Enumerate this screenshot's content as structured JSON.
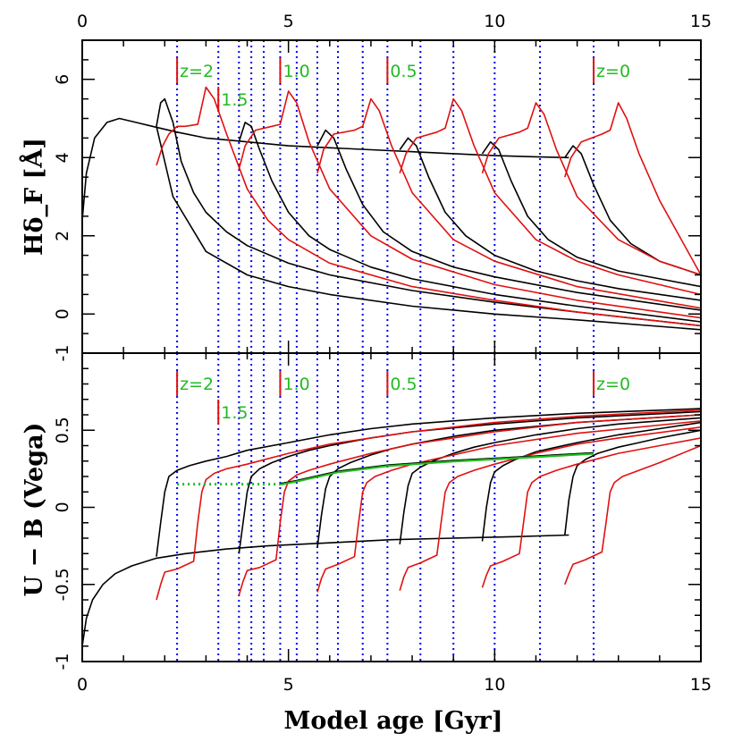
{
  "colors": {
    "model_black": "#000000",
    "model_red": "#e01010",
    "vline_blue": "#0000ee",
    "z_label_green": "#22bb22",
    "z_tick_red": "#e01010",
    "green_track": "#22bb22"
  },
  "chart_data": [
    {
      "type": "line",
      "panel": "top",
      "ylabel": "Hδ_F [Å]",
      "xlabel": "",
      "xlim": [
        0,
        15
      ],
      "ylim": [
        -1,
        7
      ],
      "grid": false,
      "x_ticks_top": [
        0,
        5,
        10,
        15
      ],
      "y_ticks": [
        -1,
        0,
        2,
        4,
        6
      ],
      "vertical_lines_x": [
        2.3,
        3.3,
        3.8,
        4.1,
        4.4,
        4.8,
        5.2,
        5.7,
        6.2,
        6.8,
        7.4,
        8.2,
        9.0,
        10.0,
        11.1,
        12.4
      ],
      "z_markers": [
        {
          "label": "z=2",
          "x": 2.3
        },
        {
          "label": "1.5",
          "x": 3.3
        },
        {
          "label": "1.0",
          "x": 4.8
        },
        {
          "label": "0.5",
          "x": 7.4
        },
        {
          "label": "z=0",
          "x": 12.4
        }
      ],
      "series": [
        {
          "color": "black",
          "x": [
            0,
            0.1,
            0.3,
            0.6,
            0.9,
            1.3,
            1.7,
            2.3,
            3.0,
            4.0,
            5.0,
            6.0,
            7.0,
            8.0,
            9.0,
            10.0,
            11.0,
            11.8
          ],
          "values": [
            2.4,
            3.6,
            4.5,
            4.9,
            5.0,
            4.9,
            4.8,
            4.65,
            4.5,
            4.4,
            4.3,
            4.25,
            4.2,
            4.15,
            4.1,
            4.05,
            4.02,
            4.0
          ]
        },
        {
          "color": "black",
          "x": [
            1.8,
            1.9,
            2.0,
            2.2,
            2.4,
            2.7,
            3.0,
            3.5,
            4.0,
            5.0,
            6.0,
            8.0,
            10.0,
            12.0,
            15.0
          ],
          "values": [
            4.8,
            5.4,
            5.5,
            4.9,
            3.9,
            3.1,
            2.6,
            2.1,
            1.75,
            1.3,
            1.0,
            0.6,
            0.3,
            0.05,
            -0.3
          ]
        },
        {
          "color": "black",
          "x": [
            1.8,
            2.2,
            3.0,
            4.0,
            5.0,
            6.0,
            8.0,
            10.0,
            12.0,
            15.0
          ],
          "values": [
            4.8,
            3.0,
            1.6,
            1.0,
            0.7,
            0.5,
            0.2,
            0.0,
            -0.15,
            -0.4
          ]
        },
        {
          "color": "black",
          "x": [
            3.8,
            3.95,
            4.1,
            4.3,
            4.6,
            5.0,
            5.5,
            6.0,
            7.0,
            8.0,
            10.0,
            12.0,
            15.0
          ],
          "values": [
            4.4,
            4.9,
            4.8,
            4.2,
            3.4,
            2.6,
            2.0,
            1.65,
            1.2,
            0.9,
            0.5,
            0.2,
            -0.2
          ]
        },
        {
          "color": "black",
          "x": [
            5.7,
            5.9,
            6.1,
            6.4,
            6.8,
            7.3,
            8.0,
            9.0,
            10.0,
            12.0,
            15.0
          ],
          "values": [
            4.3,
            4.7,
            4.5,
            3.7,
            2.8,
            2.1,
            1.6,
            1.2,
            0.95,
            0.55,
            0.1
          ]
        },
        {
          "color": "black",
          "x": [
            7.7,
            7.9,
            8.1,
            8.4,
            8.8,
            9.3,
            10.0,
            11.0,
            12.0,
            13.0,
            15.0
          ],
          "values": [
            4.2,
            4.5,
            4.3,
            3.5,
            2.6,
            2.0,
            1.5,
            1.1,
            0.85,
            0.65,
            0.35
          ]
        },
        {
          "color": "black",
          "x": [
            9.7,
            9.9,
            10.1,
            10.4,
            10.8,
            11.3,
            12.0,
            13.0,
            14.0,
            15.0
          ],
          "values": [
            4.1,
            4.4,
            4.2,
            3.4,
            2.5,
            1.9,
            1.45,
            1.1,
            0.9,
            0.7
          ]
        },
        {
          "color": "black",
          "x": [
            11.7,
            11.9,
            12.1,
            12.4,
            12.8,
            13.3,
            14.0,
            15.0
          ],
          "values": [
            4.0,
            4.3,
            4.1,
            3.3,
            2.4,
            1.8,
            1.35,
            1.0
          ]
        },
        {
          "color": "red",
          "x": [
            1.8,
            1.95,
            2.1,
            2.3,
            2.5,
            2.8,
            3.0,
            3.2,
            3.5,
            4.0,
            4.5,
            5.0,
            6.0,
            8.0,
            10.0,
            12.0,
            15.0
          ],
          "values": [
            3.8,
            4.3,
            4.6,
            4.8,
            4.8,
            4.85,
            5.8,
            5.5,
            4.6,
            3.2,
            2.4,
            1.9,
            1.3,
            0.7,
            0.35,
            0.05,
            -0.3
          ]
        },
        {
          "color": "red",
          "x": [
            3.8,
            3.95,
            4.2,
            4.6,
            4.8,
            5.0,
            5.2,
            5.5,
            6.0,
            7.0,
            8.0,
            10.0,
            12.0,
            15.0
          ],
          "values": [
            3.7,
            4.3,
            4.7,
            4.8,
            4.85,
            5.7,
            5.4,
            4.4,
            3.2,
            2.0,
            1.4,
            0.75,
            0.35,
            -0.1
          ]
        },
        {
          "color": "red",
          "x": [
            5.7,
            5.85,
            6.1,
            6.6,
            6.8,
            7.0,
            7.2,
            7.5,
            8.0,
            9.0,
            10.0,
            12.0,
            15.0
          ],
          "values": [
            3.6,
            4.2,
            4.6,
            4.7,
            4.8,
            5.5,
            5.2,
            4.3,
            3.1,
            1.9,
            1.35,
            0.7,
            0.15
          ]
        },
        {
          "color": "red",
          "x": [
            7.7,
            7.85,
            8.1,
            8.6,
            8.8,
            9.0,
            9.2,
            9.5,
            10.0,
            11.0,
            12.0,
            13.0,
            15.0
          ],
          "values": [
            3.6,
            4.1,
            4.5,
            4.65,
            4.75,
            5.5,
            5.2,
            4.3,
            3.1,
            1.9,
            1.35,
            1.0,
            0.5
          ]
        },
        {
          "color": "red",
          "x": [
            9.7,
            9.85,
            10.1,
            10.6,
            10.8,
            11.0,
            11.2,
            11.5,
            12.0,
            13.0,
            14.0,
            15.0
          ],
          "values": [
            3.6,
            4.1,
            4.5,
            4.65,
            4.75,
            5.4,
            5.1,
            4.2,
            3.0,
            1.9,
            1.35,
            1.0
          ]
        },
        {
          "color": "red",
          "x": [
            11.7,
            11.85,
            12.1,
            12.6,
            12.8,
            13.0,
            13.2,
            13.5,
            14.0,
            15.0
          ],
          "values": [
            3.5,
            4.0,
            4.4,
            4.6,
            4.7,
            5.4,
            5.0,
            4.1,
            2.9,
            1.0
          ]
        }
      ]
    },
    {
      "type": "line",
      "panel": "bottom",
      "ylabel": "U − B (Vega)",
      "xlabel": "Model age [Gyr]",
      "xlim": [
        0,
        15
      ],
      "ylim": [
        -1,
        1
      ],
      "grid": false,
      "x_ticks": [
        0,
        5,
        10,
        15
      ],
      "y_ticks": [
        -1,
        -0.5,
        0,
        0.5
      ],
      "vertical_lines_x": [
        2.3,
        3.3,
        3.8,
        4.1,
        4.4,
        4.8,
        5.2,
        5.7,
        6.2,
        6.8,
        7.4,
        8.2,
        9.0,
        10.0,
        11.1,
        12.4
      ],
      "z_markers": [
        {
          "label": "z=2",
          "x": 2.3
        },
        {
          "label": "1.5",
          "x": 3.3
        },
        {
          "label": "1.0",
          "x": 4.8
        },
        {
          "label": "0.5",
          "x": 7.4
        },
        {
          "label": "z=0",
          "x": 12.4
        }
      ],
      "series": [
        {
          "color": "black",
          "x": [
            0,
            0.1,
            0.25,
            0.5,
            0.8,
            1.2,
            1.8,
            2.5,
            3.5,
            4.5,
            6.0,
            7.5,
            9.0,
            10.5,
            11.8
          ],
          "values": [
            -0.9,
            -0.72,
            -0.6,
            -0.5,
            -0.43,
            -0.38,
            -0.33,
            -0.3,
            -0.27,
            -0.25,
            -0.23,
            -0.21,
            -0.2,
            -0.19,
            -0.18
          ]
        },
        {
          "color": "black",
          "x": [
            1.8,
            1.9,
            2.0,
            2.1,
            2.3,
            2.6,
            3.0,
            3.5,
            4.0,
            5.0,
            6.0,
            7.0,
            8.0,
            10.0,
            12.0,
            15.0
          ],
          "values": [
            -0.32,
            -0.1,
            0.1,
            0.2,
            0.24,
            0.27,
            0.3,
            0.33,
            0.37,
            0.42,
            0.47,
            0.51,
            0.54,
            0.58,
            0.61,
            0.64
          ]
        },
        {
          "color": "black",
          "x": [
            3.8,
            3.9,
            4.0,
            4.1,
            4.3,
            4.6,
            5.0,
            5.5,
            6.0,
            7.0,
            8.0,
            10.0,
            12.0,
            15.0
          ],
          "values": [
            -0.3,
            -0.1,
            0.1,
            0.2,
            0.25,
            0.29,
            0.33,
            0.37,
            0.4,
            0.45,
            0.49,
            0.54,
            0.58,
            0.62
          ]
        },
        {
          "color": "black",
          "x": [
            5.7,
            5.8,
            5.9,
            6.0,
            6.2,
            6.5,
            7.0,
            7.5,
            8.0,
            9.0,
            10.0,
            12.0,
            15.0
          ],
          "values": [
            -0.26,
            -0.05,
            0.12,
            0.2,
            0.25,
            0.29,
            0.34,
            0.38,
            0.41,
            0.46,
            0.5,
            0.55,
            0.6
          ]
        },
        {
          "color": "black",
          "x": [
            7.7,
            7.8,
            7.9,
            8.0,
            8.2,
            8.5,
            9.0,
            9.5,
            10.0,
            11.0,
            12.0,
            13.0,
            15.0
          ],
          "values": [
            -0.24,
            -0.03,
            0.14,
            0.22,
            0.26,
            0.3,
            0.35,
            0.39,
            0.42,
            0.47,
            0.51,
            0.54,
            0.58
          ]
        },
        {
          "color": "black",
          "x": [
            9.7,
            9.8,
            9.9,
            10.0,
            10.2,
            10.5,
            11.0,
            11.5,
            12.0,
            13.0,
            14.0,
            15.0
          ],
          "values": [
            -0.22,
            0.0,
            0.16,
            0.23,
            0.27,
            0.31,
            0.36,
            0.39,
            0.42,
            0.47,
            0.51,
            0.55
          ]
        },
        {
          "color": "black",
          "x": [
            11.7,
            11.8,
            11.9,
            12.0,
            12.2,
            12.5,
            13.0,
            13.5,
            14.0,
            15.0
          ],
          "values": [
            -0.18,
            0.05,
            0.2,
            0.27,
            0.31,
            0.35,
            0.39,
            0.42,
            0.45,
            0.5
          ]
        },
        {
          "color": "red",
          "x": [
            1.8,
            1.9,
            2.0,
            2.3,
            2.7,
            2.8,
            2.9,
            3.0,
            3.2,
            3.5,
            4.0,
            5.0,
            6.0,
            8.0,
            10.0,
            12.0,
            15.0
          ],
          "values": [
            -0.6,
            -0.5,
            -0.42,
            -0.4,
            -0.35,
            -0.1,
            0.1,
            0.18,
            0.22,
            0.25,
            0.28,
            0.35,
            0.41,
            0.49,
            0.55,
            0.59,
            0.63
          ]
        },
        {
          "color": "red",
          "x": [
            3.8,
            3.9,
            4.0,
            4.3,
            4.7,
            4.8,
            4.9,
            5.0,
            5.2,
            5.5,
            6.0,
            7.0,
            8.0,
            10.0,
            12.0,
            15.0
          ],
          "values": [
            -0.57,
            -0.48,
            -0.41,
            -0.39,
            -0.34,
            -0.1,
            0.1,
            0.17,
            0.21,
            0.24,
            0.28,
            0.35,
            0.41,
            0.49,
            0.55,
            0.6
          ]
        },
        {
          "color": "red",
          "x": [
            5.7,
            5.8,
            5.9,
            6.2,
            6.6,
            6.7,
            6.8,
            6.9,
            7.1,
            7.5,
            8.0,
            9.0,
            10.0,
            12.0,
            15.0
          ],
          "values": [
            -0.55,
            -0.46,
            -0.4,
            -0.37,
            -0.32,
            -0.1,
            0.1,
            0.16,
            0.2,
            0.24,
            0.28,
            0.34,
            0.4,
            0.48,
            0.56
          ]
        },
        {
          "color": "red",
          "x": [
            7.7,
            7.8,
            7.9,
            8.2,
            8.6,
            8.7,
            8.8,
            8.9,
            9.1,
            9.5,
            10.0,
            11.0,
            12.0,
            13.0,
            15.0
          ],
          "values": [
            -0.54,
            -0.45,
            -0.39,
            -0.36,
            -0.31,
            -0.1,
            0.1,
            0.16,
            0.2,
            0.24,
            0.28,
            0.35,
            0.41,
            0.45,
            0.52
          ]
        },
        {
          "color": "red",
          "x": [
            9.7,
            9.8,
            9.9,
            10.2,
            10.6,
            10.7,
            10.8,
            10.9,
            11.1,
            11.5,
            12.0,
            13.0,
            14.0,
            15.0
          ],
          "values": [
            -0.52,
            -0.44,
            -0.38,
            -0.35,
            -0.3,
            -0.1,
            0.1,
            0.16,
            0.2,
            0.24,
            0.28,
            0.35,
            0.4,
            0.45
          ]
        },
        {
          "color": "red",
          "x": [
            11.7,
            11.8,
            11.9,
            12.2,
            12.6,
            12.7,
            12.8,
            12.9,
            13.1,
            13.5,
            14.0,
            15.0
          ],
          "values": [
            -0.5,
            -0.43,
            -0.37,
            -0.34,
            -0.29,
            -0.1,
            0.1,
            0.16,
            0.2,
            0.24,
            0.29,
            0.4
          ]
        }
      ],
      "green_track": {
        "dotted": {
          "x": [
            2.3,
            4.8
          ],
          "values": [
            0.15,
            0.15
          ]
        },
        "solid": {
          "x": [
            4.8,
            5.2,
            6.2,
            7.4,
            9.0,
            11.1,
            12.4
          ],
          "values": [
            0.15,
            0.17,
            0.23,
            0.27,
            0.3,
            0.33,
            0.35
          ]
        }
      }
    }
  ]
}
